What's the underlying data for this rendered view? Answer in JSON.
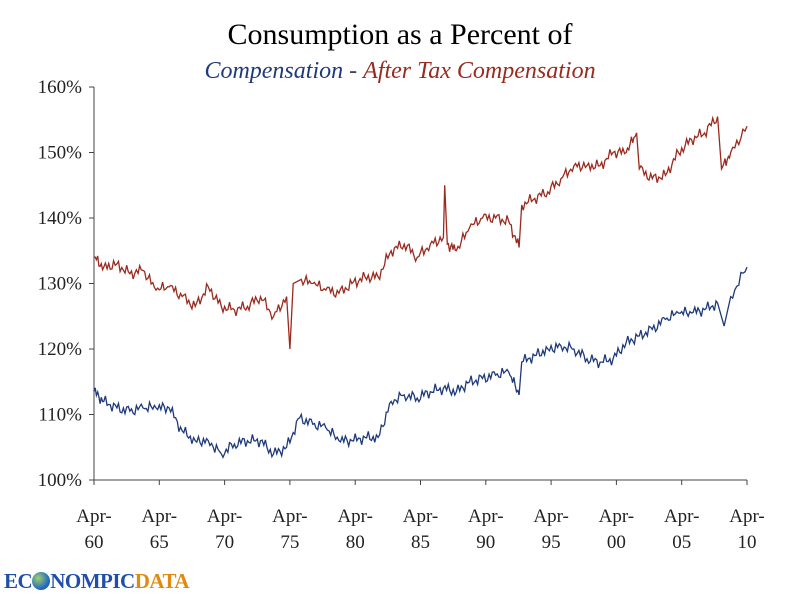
{
  "chart_data": {
    "type": "line",
    "title": "Consumption as a Percent of",
    "subtitle": {
      "part1": "Compensation",
      "separator": " - ",
      "part2": "After Tax Compensation"
    },
    "ylim": [
      100,
      160
    ],
    "xlim": [
      1960.25,
      2010.25
    ],
    "yticks": [
      "100%",
      "110%",
      "120%",
      "130%",
      "140%",
      "150%",
      "160%"
    ],
    "ytick_values": [
      100,
      110,
      120,
      130,
      140,
      150,
      160
    ],
    "xticks": [
      {
        "line1": "Apr-",
        "line2": "60",
        "year": 1960.25
      },
      {
        "line1": "Apr-",
        "line2": "65",
        "year": 1965.25
      },
      {
        "line1": "Apr-",
        "line2": "70",
        "year": 1970.25
      },
      {
        "line1": "Apr-",
        "line2": "75",
        "year": 1975.25
      },
      {
        "line1": "Apr-",
        "line2": "80",
        "year": 1980.25
      },
      {
        "line1": "Apr-",
        "line2": "85",
        "year": 1985.25
      },
      {
        "line1": "Apr-",
        "line2": "90",
        "year": 1990.25
      },
      {
        "line1": "Apr-",
        "line2": "95",
        "year": 1995.25
      },
      {
        "line1": "Apr-",
        "line2": "00",
        "year": 2000.25
      },
      {
        "line1": "Apr-",
        "line2": "05",
        "year": 2005.25
      },
      {
        "line1": "Apr-",
        "line2": "10",
        "year": 2010.25
      }
    ],
    "grid": false,
    "series": [
      {
        "name": "Compensation",
        "color": "#1f3a7a",
        "x": [
          1960.25,
          1961,
          1962,
          1963,
          1964,
          1965,
          1966,
          1967,
          1968,
          1969,
          1970,
          1971,
          1972,
          1973,
          1974,
          1975,
          1976,
          1977,
          1978,
          1979,
          1980,
          1981,
          1982,
          1983,
          1984,
          1985,
          1986,
          1987,
          1988,
          1989,
          1990,
          1991,
          1992,
          1992.8,
          1993,
          1994,
          1995,
          1996,
          1997,
          1998,
          1999,
          2000,
          2001,
          2002,
          2003,
          2004,
          2005,
          2006,
          2007,
          2008,
          2008.5,
          2009,
          2010.25
        ],
        "y": [
          113.5,
          112,
          111,
          110.5,
          111,
          111,
          111,
          107.5,
          106,
          106,
          104,
          105.5,
          106,
          106,
          104,
          105,
          109.5,
          108.5,
          108,
          106,
          106,
          106.5,
          106.5,
          112,
          113,
          112.5,
          113.5,
          114,
          113.5,
          115,
          115.5,
          116,
          116.5,
          113,
          118,
          119,
          120,
          120.5,
          120,
          118.5,
          118,
          118.5,
          121,
          122,
          123,
          124.5,
          125.5,
          125.5,
          126,
          127,
          123.5,
          128,
          132.5
        ]
      },
      {
        "name": "After Tax Compensation",
        "color": "#9a2a1e",
        "x": [
          1960.25,
          1961,
          1962,
          1963,
          1964,
          1965,
          1966,
          1967,
          1968,
          1969,
          1970,
          1971,
          1972,
          1973,
          1974,
          1975,
          1975.25,
          1975.5,
          1976,
          1977,
          1978,
          1979,
          1980,
          1981,
          1982,
          1983,
          1984,
          1985,
          1986,
          1987,
          1987.1,
          1987.3,
          1988,
          1989,
          1990,
          1991,
          1992,
          1992.8,
          1993,
          1994,
          1995,
          1996,
          1997,
          1998,
          1999,
          2000,
          2001,
          2001.8,
          2002,
          2003,
          2004,
          2005,
          2006,
          2007,
          2008,
          2008.3,
          2009,
          2010.25
        ],
        "y": [
          134,
          132.5,
          133,
          131.5,
          132,
          129,
          129.5,
          128,
          126.5,
          129.5,
          126.5,
          126,
          126.5,
          128,
          125,
          128,
          120,
          130,
          130.5,
          130,
          129,
          128.5,
          130,
          131,
          131,
          135,
          136,
          134,
          136,
          137,
          145,
          136,
          135,
          138.5,
          140,
          140,
          139.5,
          135.5,
          142,
          143,
          144,
          146,
          148,
          148,
          148,
          150,
          150,
          153,
          147.5,
          146,
          146.5,
          150,
          152,
          153,
          155.5,
          147.5,
          150,
          154
        ]
      }
    ]
  },
  "logo": {
    "part1": "ECONOMIC",
    "part2": "DATA",
    "text_shown": "EC",
    "text_shown2": "NOMPIC"
  }
}
